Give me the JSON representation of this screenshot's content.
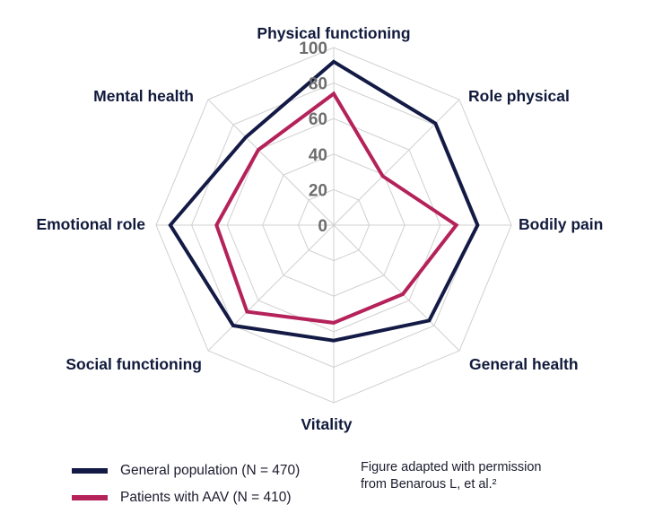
{
  "chart_data": {
    "type": "radar",
    "axes": [
      "Physical functioning",
      "Role physical",
      "Bodily pain",
      "General health",
      "Vitality",
      "Social functioning",
      "Emotional role",
      "Mental health"
    ],
    "ticks": [
      "0",
      "20",
      "40",
      "60",
      "80",
      "100"
    ],
    "range": [
      0,
      100
    ],
    "series": [
      {
        "name": "General population (N = 470)",
        "color": "#131a45",
        "values": [
          92,
          81,
          81,
          76,
          65,
          80,
          92,
          70
        ]
      },
      {
        "name": "Patients with AAV (N = 410)",
        "color": "#b5225a",
        "values": [
          74,
          39,
          69,
          55,
          55,
          69,
          66,
          60
        ]
      }
    ],
    "grid": true,
    "legend_position": "bottom-left"
  },
  "note": "Figure adapted with permission\nfrom Benarous L, et al.²"
}
